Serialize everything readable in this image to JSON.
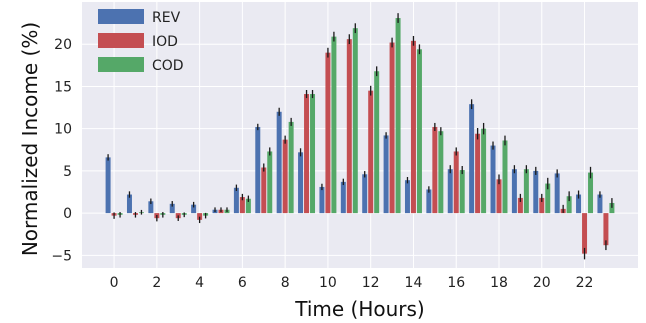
{
  "chart_data": {
    "type": "bar",
    "title": "",
    "xlabel": "Time (Hours)",
    "ylabel": "Normalized Income (%)",
    "ylim": [
      -6.5,
      25
    ],
    "xlim": [
      -1.5,
      24.5
    ],
    "grid": true,
    "background": "#eaeaf2",
    "legend_position": "top-left",
    "x": [
      0,
      1,
      2,
      3,
      4,
      5,
      6,
      7,
      8,
      9,
      10,
      11,
      12,
      13,
      14,
      15,
      16,
      17,
      18,
      19,
      20,
      21,
      22,
      23
    ],
    "x_ticks": [
      0,
      2,
      4,
      6,
      8,
      10,
      12,
      14,
      16,
      18,
      20,
      22
    ],
    "y_ticks": [
      -5,
      0,
      5,
      10,
      15,
      20
    ],
    "series": [
      {
        "name": "REV",
        "color": "#4c72b0",
        "values": [
          6.6,
          2.2,
          1.4,
          1.1,
          1.0,
          0.4,
          3.0,
          10.2,
          12.0,
          7.2,
          3.1,
          3.7,
          4.6,
          9.2,
          3.9,
          2.8,
          5.2,
          12.9,
          8.0,
          5.2,
          5.0,
          4.7,
          2.2,
          2.2
        ],
        "errors": [
          0.2,
          0.2,
          0.15,
          0.15,
          0.15,
          0.1,
          0.2,
          0.2,
          0.3,
          0.3,
          0.2,
          0.2,
          0.2,
          0.2,
          0.2,
          0.2,
          0.3,
          0.4,
          0.3,
          0.3,
          0.3,
          0.3,
          0.3,
          0.2
        ]
      },
      {
        "name": "IOD",
        "color": "#c44e52",
        "values": [
          -0.3,
          -0.2,
          -0.6,
          -0.6,
          -0.8,
          0.4,
          1.9,
          5.4,
          8.7,
          14.1,
          19.0,
          20.6,
          14.5,
          20.2,
          20.4,
          10.2,
          7.3,
          9.4,
          4.0,
          1.8,
          1.8,
          0.5,
          -4.8,
          -3.8
        ],
        "errors": [
          0.2,
          0.15,
          0.2,
          0.15,
          0.2,
          0.1,
          0.2,
          0.3,
          0.3,
          0.3,
          0.4,
          0.4,
          0.4,
          0.4,
          0.4,
          0.3,
          0.3,
          0.5,
          0.4,
          0.3,
          0.3,
          0.3,
          0.5,
          0.4
        ]
      },
      {
        "name": "COD",
        "color": "#55a868",
        "values": [
          -0.2,
          0.1,
          -0.2,
          -0.2,
          -0.3,
          0.4,
          1.7,
          7.3,
          10.8,
          14.1,
          20.9,
          21.9,
          16.8,
          23.1,
          19.4,
          9.7,
          5.1,
          10.0,
          8.6,
          5.2,
          3.5,
          2.0,
          4.8,
          1.2
        ],
        "errors": [
          0.15,
          0.1,
          0.15,
          0.1,
          0.15,
          0.1,
          0.2,
          0.3,
          0.3,
          0.3,
          0.4,
          0.4,
          0.4,
          0.4,
          0.4,
          0.3,
          0.3,
          0.5,
          0.4,
          0.3,
          0.5,
          0.4,
          0.5,
          0.4
        ]
      }
    ]
  }
}
